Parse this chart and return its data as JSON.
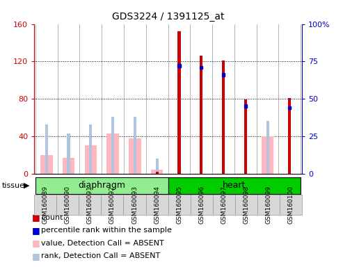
{
  "title": "GDS3224 / 1391125_at",
  "samples": [
    "GSM160089",
    "GSM160090",
    "GSM160091",
    "GSM160092",
    "GSM160093",
    "GSM160094",
    "GSM160095",
    "GSM160096",
    "GSM160097",
    "GSM160098",
    "GSM160099",
    "GSM160100"
  ],
  "groups": [
    {
      "name": "diaphragm",
      "indices": [
        0,
        1,
        2,
        3,
        4,
        5
      ],
      "color": "#90EE90"
    },
    {
      "name": "heart",
      "indices": [
        6,
        7,
        8,
        9,
        10,
        11
      ],
      "color": "#00CC00"
    }
  ],
  "count_values": [
    0,
    0,
    0,
    0,
    0,
    2,
    152,
    126,
    121,
    79,
    0,
    81
  ],
  "rank_values": [
    0,
    0,
    0,
    0,
    0,
    0,
    72,
    71,
    66,
    45,
    0,
    44
  ],
  "absent_value": [
    20,
    17,
    30,
    43,
    38,
    4,
    0,
    0,
    0,
    0,
    40,
    0
  ],
  "absent_rank": [
    33,
    27,
    33,
    38,
    38,
    10,
    0,
    0,
    0,
    0,
    35,
    0
  ],
  "left_ylim": [
    0,
    160
  ],
  "right_ylim": [
    0,
    100
  ],
  "left_yticks": [
    0,
    40,
    80,
    120,
    160
  ],
  "right_yticks": [
    0,
    25,
    50,
    75,
    100
  ],
  "count_color": "#CC0000",
  "rank_color": "#0000CC",
  "absent_value_color": "#FFB6C1",
  "absent_rank_color": "#B0C4DE",
  "bg_color": "#D8D8D8",
  "plot_bg": "#FFFFFF",
  "tissue_label": "tissue",
  "legend_items": [
    "count",
    "percentile rank within the sample",
    "value, Detection Call = ABSENT",
    "rank, Detection Call = ABSENT"
  ]
}
